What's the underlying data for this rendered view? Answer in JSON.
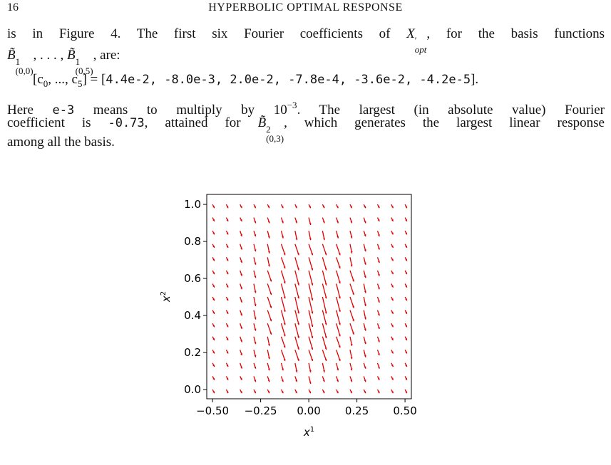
{
  "header": {
    "page_number": "16",
    "running_title": "HYPERBOLIC OPTIMAL RESPONSE"
  },
  "paragraphs": [
    [
      "is in Figure 4.   The first six Fourier coefficients of ",
      "X",
      "′",
      "opt",
      ", for the basis functions",
      "B̃",
      "1",
      "(0,0)",
      ", . . . , ",
      "B̃",
      "1",
      "(0,5)",
      ", are:"
    ],
    [
      "[c",
      "0",
      ", ..., c",
      "5",
      "] = [",
      "4.4e-2, -8.0e-3, 2.0e-2, -7.8e-4, -3.6e-2, -4.2e-5",
      "]."
    ],
    [
      "Here ",
      "e-3",
      " means to multiply by ",
      "10",
      "−3",
      ".  The largest (in absolute value) Fourier",
      "coefficient is ",
      "-0.73",
      ", attained for ",
      "B̃",
      "2",
      "(0,3)",
      ", which generates the largest linear response",
      "among all the basis."
    ]
  ],
  "chart_data": {
    "type": "quiver",
    "color": "#e00000",
    "xlabel": "x",
    "xlabel_superscript": "1",
    "ylabel": "x",
    "ylabel_superscript": "2",
    "xlim": [
      -0.53,
      0.533
    ],
    "ylim": [
      -0.05,
      1.054
    ],
    "xticks": [
      {
        "value": -0.5,
        "label": "−0.50"
      },
      {
        "value": -0.25,
        "label": "−0.25"
      },
      {
        "value": 0,
        "label": "0.00"
      },
      {
        "value": 0.25,
        "label": "0.25"
      },
      {
        "value": 0.5,
        "label": "0.50"
      }
    ],
    "yticks": [
      {
        "value": 0,
        "label": "0.0"
      },
      0.2,
      0.4,
      0.6,
      0.8,
      {
        "value": 1,
        "label": "1.0"
      }
    ],
    "x": [
      -0.5,
      -0.4286,
      -0.3571,
      -0.2857,
      -0.2143,
      -0.1429,
      -0.0714,
      0,
      0.0714,
      0.1429,
      0.2143,
      0.2857,
      0.3571,
      0.4286,
      0.5
    ],
    "y": [
      0,
      0.0714,
      0.1429,
      0.2143,
      0.2857,
      0.3571,
      0.4286,
      0.5,
      0.5714,
      0.6429,
      0.7143,
      0.7857,
      0.8571,
      0.9286,
      1
    ],
    "u": [
      [
        0.01,
        0.01,
        0.01,
        0.01,
        0.01,
        0.01,
        0.01,
        0.01,
        0.01,
        0.01,
        0.01,
        0.01,
        0.01,
        0.01,
        0.01
      ],
      [
        0.01,
        0.01,
        0.01,
        0.01,
        0.01,
        0.01,
        0.01,
        0.01,
        0.01,
        0.01,
        0.01,
        0.01,
        0.01,
        0.01,
        0.01
      ],
      [
        0.01,
        0.01,
        0.01,
        0.01,
        0.01,
        0.01,
        0.01,
        0.01,
        0.01,
        0.01,
        0.01,
        0.01,
        0.01,
        0.01,
        0.01
      ],
      [
        0.01,
        0.01,
        0.01,
        0.01,
        0.01,
        0.02,
        0.02,
        0.02,
        0.02,
        0.02,
        0.01,
        0.01,
        0.01,
        0.01,
        0.01
      ],
      [
        0.01,
        0.01,
        0.01,
        0.01,
        0.01,
        0.02,
        0.02,
        0.02,
        0.02,
        0.02,
        0.01,
        0.01,
        0.01,
        0.01,
        0.01
      ],
      [
        0.01,
        0.01,
        0.01,
        0.01,
        0.02,
        0.02,
        0.02,
        0.02,
        0.02,
        0.02,
        0.02,
        0.01,
        0.01,
        0.01,
        0.01
      ],
      [
        0.01,
        0.01,
        0.01,
        0.01,
        0.02,
        0.02,
        0.02,
        0.02,
        0.02,
        0.02,
        0.02,
        0.01,
        0.01,
        0.01,
        0.01
      ],
      [
        0.01,
        0.01,
        0.01,
        0.01,
        0.02,
        0.02,
        0.02,
        0.02,
        0.02,
        0.02,
        0.02,
        0.01,
        0.01,
        0.01,
        0.01
      ],
      [
        0.01,
        0.01,
        0.01,
        0.01,
        0.02,
        0.02,
        0.02,
        0.02,
        0.02,
        0.02,
        0.02,
        0.01,
        0.01,
        0.01,
        0.01
      ],
      [
        0.01,
        0.01,
        0.01,
        0.01,
        0.02,
        0.02,
        0.02,
        0.02,
        0.02,
        0.02,
        0.02,
        0.01,
        0.01,
        0.01,
        0.01
      ],
      [
        0.01,
        0.01,
        0.01,
        0.01,
        0.01,
        0.02,
        0.02,
        0.02,
        0.02,
        0.02,
        0.01,
        0.01,
        0.01,
        0.01,
        0.01
      ],
      [
        0.01,
        0.01,
        0.01,
        0.01,
        0.01,
        0.02,
        0.02,
        0.02,
        0.02,
        0.02,
        0.01,
        0.01,
        0.01,
        0.01,
        0.01
      ],
      [
        0.01,
        0.01,
        0.01,
        0.01,
        0.01,
        0.01,
        0.01,
        0.01,
        0.01,
        0.01,
        0.01,
        0.01,
        0.01,
        0.01,
        0.01
      ],
      [
        0.01,
        0.01,
        0.01,
        0.01,
        0.01,
        0.01,
        0.01,
        0.01,
        0.01,
        0.01,
        0.01,
        0.01,
        0.01,
        0.01,
        0.01
      ],
      [
        0.01,
        0.01,
        0.01,
        0.01,
        0.01,
        0.01,
        0.01,
        0.01,
        0.01,
        0.01,
        0.01,
        0.01,
        0.01,
        0.01,
        0.01
      ]
    ],
    "v": [
      [
        -0.02,
        -0.02,
        -0.02,
        -0.02,
        -0.02,
        -0.02,
        -0.02,
        -0.02,
        -0.02,
        -0.02,
        -0.02,
        -0.02,
        -0.02,
        -0.02,
        -0.02
      ],
      [
        -0.02,
        -0.02,
        -0.02,
        -0.03,
        -0.03,
        -0.03,
        -0.03,
        -0.04,
        -0.03,
        -0.03,
        -0.03,
        -0.03,
        -0.02,
        -0.02,
        -0.02
      ],
      [
        -0.02,
        -0.02,
        -0.03,
        -0.03,
        -0.04,
        -0.04,
        -0.05,
        -0.05,
        -0.05,
        -0.04,
        -0.04,
        -0.03,
        -0.03,
        -0.02,
        -0.02
      ],
      [
        -0.02,
        -0.02,
        -0.03,
        -0.04,
        -0.05,
        -0.06,
        -0.06,
        -0.06,
        -0.06,
        -0.06,
        -0.05,
        -0.04,
        -0.03,
        -0.02,
        -0.02
      ],
      [
        -0.02,
        -0.02,
        -0.03,
        -0.04,
        -0.05,
        -0.06,
        -0.07,
        -0.07,
        -0.07,
        -0.06,
        -0.05,
        -0.04,
        -0.03,
        -0.02,
        -0.02
      ],
      [
        -0.02,
        -0.02,
        -0.03,
        -0.04,
        -0.06,
        -0.07,
        -0.08,
        -0.08,
        -0.08,
        -0.07,
        -0.06,
        -0.04,
        -0.03,
        -0.02,
        -0.02
      ],
      [
        -0.02,
        -0.02,
        -0.03,
        -0.05,
        -0.06,
        -0.08,
        -0.08,
        -0.09,
        -0.08,
        -0.08,
        -0.06,
        -0.05,
        -0.03,
        -0.02,
        -0.02
      ],
      [
        -0.02,
        -0.02,
        -0.03,
        -0.05,
        -0.06,
        -0.08,
        -0.09,
        -0.09,
        -0.09,
        -0.08,
        -0.06,
        -0.05,
        -0.03,
        -0.02,
        -0.02
      ],
      [
        -0.02,
        -0.02,
        -0.03,
        -0.05,
        -0.06,
        -0.08,
        -0.08,
        -0.09,
        -0.08,
        -0.08,
        -0.06,
        -0.05,
        -0.03,
        -0.02,
        -0.02
      ],
      [
        -0.02,
        -0.02,
        -0.03,
        -0.04,
        -0.06,
        -0.07,
        -0.08,
        -0.08,
        -0.08,
        -0.07,
        -0.06,
        -0.04,
        -0.03,
        -0.02,
        -0.02
      ],
      [
        -0.02,
        -0.02,
        -0.03,
        -0.04,
        -0.05,
        -0.06,
        -0.07,
        -0.07,
        -0.07,
        -0.06,
        -0.05,
        -0.04,
        -0.03,
        -0.02,
        -0.02
      ],
      [
        -0.02,
        -0.02,
        -0.03,
        -0.04,
        -0.05,
        -0.06,
        -0.06,
        -0.06,
        -0.06,
        -0.06,
        -0.05,
        -0.04,
        -0.03,
        -0.02,
        -0.02
      ],
      [
        -0.02,
        -0.02,
        -0.03,
        -0.03,
        -0.04,
        -0.04,
        -0.05,
        -0.05,
        -0.05,
        -0.04,
        -0.04,
        -0.03,
        -0.03,
        -0.02,
        -0.02
      ],
      [
        -0.02,
        -0.02,
        -0.02,
        -0.03,
        -0.03,
        -0.03,
        -0.03,
        -0.04,
        -0.03,
        -0.03,
        -0.03,
        -0.03,
        -0.02,
        -0.02,
        -0.02
      ],
      [
        -0.02,
        -0.02,
        -0.02,
        -0.02,
        -0.02,
        -0.02,
        -0.02,
        -0.02,
        -0.02,
        -0.02,
        -0.02,
        -0.02,
        -0.02,
        -0.02,
        -0.02
      ]
    ]
  }
}
